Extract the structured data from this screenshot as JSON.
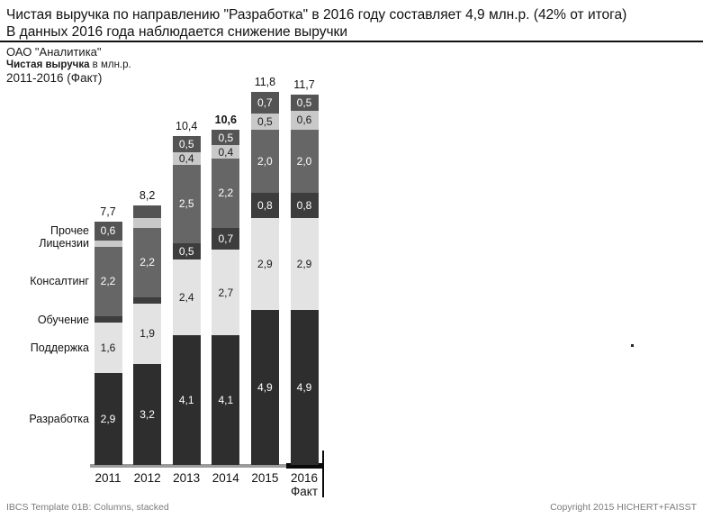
{
  "title": {
    "line1": "Чистая выручка по направлению \"Разработка\" в 2016 году составляет 4,9 млн.р. (42% от итога)",
    "line2": "В данных 2016 года наблюдается снижение выручки"
  },
  "header": {
    "company": "ОАО \"Аналитика\"",
    "measure_bold": "Чистая выручка",
    "measure_rest": " в млн.р.",
    "period": "2011-2016 (Факт)"
  },
  "chart_data": {
    "type": "bar",
    "stacked": true,
    "title": "Чистая выручка в млн.р., 2011-2016 (Факт)",
    "xlabel": "",
    "ylabel": "млн.р.",
    "grid": false,
    "legend_position": "left-of-first-column",
    "categories": [
      "2011",
      "2012",
      "2013",
      "2014",
      "2015",
      "2016"
    ],
    "last_category_sublabel": "Факт",
    "series": [
      {
        "name": "Разработка",
        "color": "#2e2e2e",
        "label_color": "#ffffff",
        "values": [
          2.9,
          3.2,
          4.1,
          4.1,
          4.9,
          4.9
        ],
        "labels": [
          "2,9",
          "3,2",
          "4,1",
          "4,1",
          "4,9",
          "4,9"
        ]
      },
      {
        "name": "Поддержка",
        "color": "#e3e3e3",
        "label_color": "#1a1a1a",
        "values": [
          1.6,
          1.9,
          2.4,
          2.7,
          2.9,
          2.9
        ],
        "labels": [
          "1,6",
          "1,9",
          "2,4",
          "2,7",
          "2,9",
          "2,9"
        ]
      },
      {
        "name": "Обучение",
        "color": "#3d3d3d",
        "label_color": "#ffffff",
        "values": [
          0.2,
          0.2,
          0.5,
          0.7,
          0.8,
          0.8
        ],
        "labels": [
          "",
          "",
          "0,5",
          "0,7",
          "0,8",
          "0,8"
        ]
      },
      {
        "name": "Консалтинг",
        "color": "#666666",
        "label_color": "#ffffff",
        "values": [
          2.2,
          2.2,
          2.5,
          2.2,
          2.0,
          2.0
        ],
        "labels": [
          "2,2",
          "2,2",
          "2,5",
          "2,2",
          "2,0",
          "2,0"
        ]
      },
      {
        "name": "Лицензии",
        "color": "#c9c9c9",
        "label_color": "#1a1a1a",
        "values": [
          0.2,
          0.3,
          0.4,
          0.4,
          0.5,
          0.6
        ],
        "labels": [
          "",
          "",
          "0,4",
          "0,4",
          "0,5",
          "0,6"
        ]
      },
      {
        "name": "Прочее",
        "color": "#545454",
        "label_color": "#ffffff",
        "values": [
          0.6,
          0.4,
          0.5,
          0.5,
          0.7,
          0.5
        ],
        "labels": [
          "0,6",
          "",
          "0,5",
          "0,5",
          "0,7",
          "0,5"
        ]
      }
    ],
    "totals": {
      "values": [
        7.7,
        8.2,
        10.4,
        10.6,
        11.8,
        11.7
      ],
      "labels": [
        "7,7",
        "8,2",
        "10,4",
        "10,6",
        "11,8",
        "11,7"
      ],
      "bold": [
        false,
        false,
        false,
        true,
        false,
        false
      ]
    },
    "axis_colors": {
      "default": "#9b9b9b",
      "actual": "#0a0a0a"
    }
  },
  "footer": {
    "left": "IBCS Template 01B: Columns, stacked",
    "right": "Copyright 2015 HICHERT+FAISST"
  }
}
